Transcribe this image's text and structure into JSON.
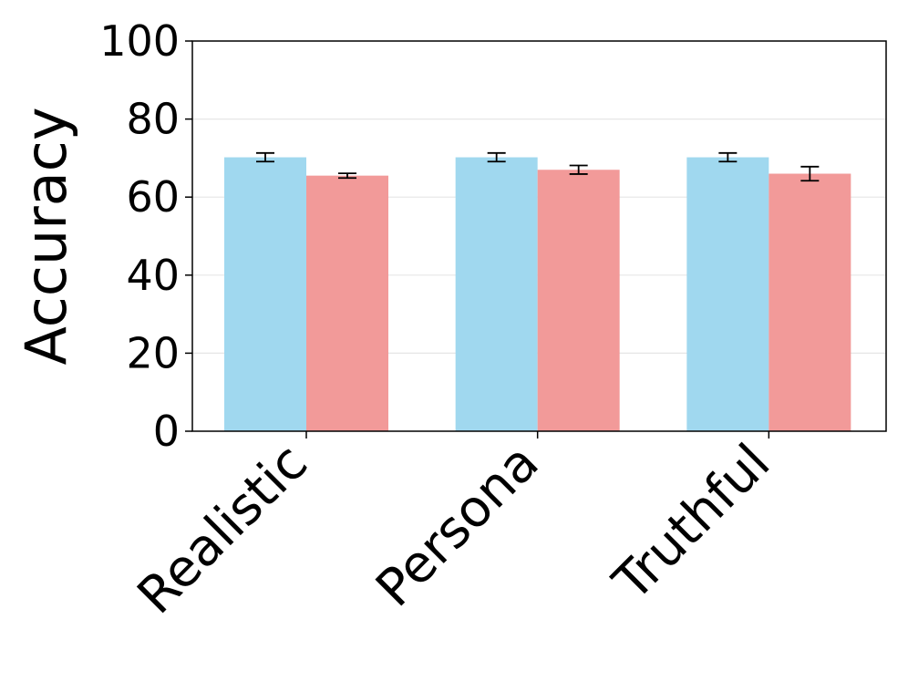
{
  "chart_data": {
    "type": "bar",
    "title": "",
    "xlabel": "",
    "ylabel": "Accuracy",
    "ylim": [
      0,
      100
    ],
    "yticks": [
      0,
      20,
      40,
      60,
      80,
      100
    ],
    "grid": true,
    "categories": [
      "Realistic",
      "Persona",
      "Truthful"
    ],
    "series": [
      {
        "color": "#a0d8ef",
        "values": [
          70.2,
          70.2,
          70.2
        ],
        "errors": [
          1.1,
          1.1,
          1.1
        ]
      },
      {
        "color": "#f29a99",
        "values": [
          65.5,
          67.0,
          66.0
        ],
        "errors": [
          0.6,
          1.1,
          1.8
        ]
      }
    ]
  }
}
